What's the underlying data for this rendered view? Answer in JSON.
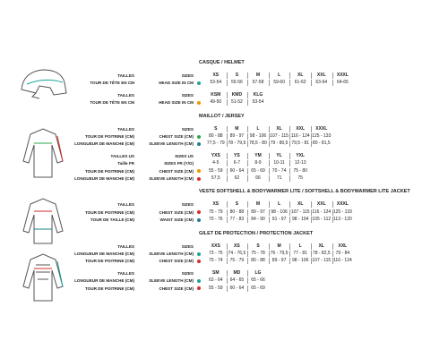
{
  "sections": [
    {
      "title": "CASQUE / HELMET",
      "tables": [
        {
          "rows": [
            {
              "label": "TAILLES",
              "key": "SIZES",
              "cells": [
                "XS",
                "S",
                "M",
                "L",
                "XL",
                "XXL",
                "XXXL"
              ]
            },
            {
              "label": "TOUR DE TÊTE EN CM",
              "key": "HEAD SIZE IN CM",
              "dot": "#1aa39a",
              "cells": [
                "53-54",
                "55-56",
                "57-58",
                "59-60",
                "61-62",
                "63-64",
                "64-65"
              ]
            }
          ]
        },
        {
          "rows": [
            {
              "label": "TAILLES",
              "key": "SIZES",
              "cells": [
                "KSM",
                "KMD",
                "KLG"
              ]
            },
            {
              "label": "TOUR DE TÊTE EN CM",
              "key": "HEAD SIZE IN CM",
              "dot": "#f39200",
              "cells": [
                "49-50",
                "51-52",
                "53-54"
              ]
            }
          ]
        }
      ]
    },
    {
      "title": "MAILLOT / JERSEY",
      "tables": [
        {
          "rows": [
            {
              "label": "TAILLES",
              "key": "SIZES",
              "cells": [
                "S",
                "M",
                "L",
                "XL",
                "XXL",
                "XXXL"
              ]
            },
            {
              "label": "TOUR DE POITRINE (CM)",
              "key": "CHEST SIZE (CM)",
              "dot": "#2aa84a",
              "cells": [
                "80 - 88",
                "89 - 97",
                "98 - 106",
                "107 - 115",
                "116 - 124",
                "125 - 133"
              ]
            },
            {
              "label": "LONGUEUR DE MANCHE (CM)",
              "key": "SLEEVE LENGTH (CM)",
              "dot": "#1a7f8e",
              "cells": [
                "77,5 - 79",
                "78 - 79,5",
                "78,5 - 80",
                "79 - 80,5",
                "79,5 - 81",
                "80 - 81,5"
              ]
            }
          ]
        },
        {
          "rows": [
            {
              "label": "TAILLES US",
              "key": "SIZES US",
              "cells": [
                "YXS",
                "YS",
                "YM",
                "YL",
                "YXL"
              ]
            },
            {
              "label": "Taille FR",
              "key": "SIZES FR (Y/O)",
              "cells": [
                "4-5",
                "6-7",
                "8-9",
                "10-11",
                "12-13"
              ]
            },
            {
              "label": "TOUR DE POITRINE (CM)",
              "key": "CHEST SIZE (CM)",
              "dot": "#f39200",
              "cells": [
                "55 - 59",
                "60 - 64",
                "65 - 69",
                "70 - 74",
                "75 - 80"
              ]
            },
            {
              "label": "LONGUEUR DE MANCHE (CM)",
              "key": "SLEEVE LENGTH (CM)",
              "dot": "#d62b2b",
              "cells": [
                "57,5",
                "62",
                "66",
                "71",
                "75"
              ]
            }
          ]
        }
      ]
    },
    {
      "title": "VESTE SOFTSHELL & BODYWARMER LITE / SOFTSHELL & BODYWARMER LITE JACKET",
      "tables": [
        {
          "rows": [
            {
              "label": "TAILLES",
              "key": "SIZES",
              "cells": [
                "XS",
                "S",
                "M",
                "L",
                "XL",
                "XXL",
                "XXXL"
              ]
            },
            {
              "label": "TOUR DE POITRINE (CM)",
              "key": "CHEST SIZE (CM)",
              "dot": "#d62b2b",
              "cells": [
                "75 - 79",
                "80 - 88",
                "89 - 97",
                "98 - 106",
                "107 - 115",
                "116 - 124",
                "125 - 133"
              ]
            },
            {
              "label": "TOUR DE TAILLE (CM)",
              "key": "WAIST SIZE (CM)",
              "dot": "#1a7f8e",
              "cells": [
                "70 - 76",
                "77 - 83",
                "84 - 90",
                "91 - 97",
                "98 - 104",
                "105 - 112",
                "113 - 120"
              ]
            }
          ]
        }
      ]
    },
    {
      "title": "GILET DE PROTECTION / PROTECTION JACKET",
      "tables": [
        {
          "rows": [
            {
              "label": "TAILLES",
              "key": "SIZES",
              "cells": [
                "XXS",
                "XS",
                "S",
                "M",
                "L",
                "XL",
                "XXL"
              ]
            },
            {
              "label": "LONGUEUR DE MANCHE (CM)",
              "key": "SLEEVE LENGTH (CM)",
              "dot": "#1aa39a",
              "cells": [
                "73 - 75",
                "74 - 76,5",
                "75 - 78",
                "76 - 79,5",
                "77 - 81",
                "78 - 82,5",
                "79 - 84"
              ]
            },
            {
              "label": "TOUR DE POITRINE (CM)",
              "key": "CHEST SIZE (CM)",
              "dot": "#d62b2b",
              "cells": [
                "70 - 74",
                "75 - 79",
                "80 - 88",
                "89 - 97",
                "98 - 106",
                "107 - 115",
                "116 - 124"
              ]
            }
          ]
        },
        {
          "rows": [
            {
              "label": "TAILLES",
              "key": "SIZES",
              "cells": [
                "SM",
                "MD",
                "LG"
              ]
            },
            {
              "label": "LONGUEUR DE MANCHE (CM)",
              "key": "SLEEVE LENGTH (CM)",
              "dot": "#1aa39a",
              "cells": [
                "63 - 64",
                "64 - 65",
                "65 - 66"
              ]
            },
            {
              "label": "TOUR DE POITRINE (CM)",
              "key": "CHEST SIZE (CM)",
              "dot": "#d62b2b",
              "cells": [
                "55 - 59",
                "60 - 64",
                "65 - 69"
              ]
            }
          ]
        }
      ]
    }
  ]
}
